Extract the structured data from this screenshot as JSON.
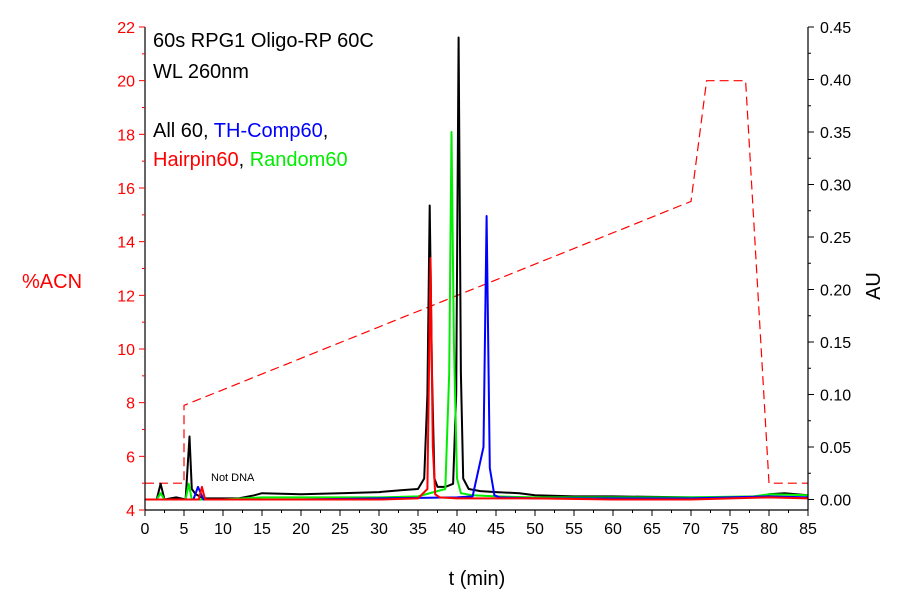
{
  "chart_data": {
    "type": "line",
    "title": "",
    "xlabel": "t (min)",
    "ylabel_left": "%ACN",
    "ylabel_right": "AU",
    "xlim": [
      0,
      85
    ],
    "ylim_left": [
      4,
      22
    ],
    "ylim_right": [
      -0.01,
      0.45
    ],
    "x_ticks": [
      "0",
      "5",
      "10",
      "15",
      "20",
      "25",
      "30",
      "35",
      "40",
      "45",
      "50",
      "55",
      "60",
      "65",
      "70",
      "75",
      "80",
      "85"
    ],
    "y_left_ticks": [
      "4",
      "6",
      "8",
      "10",
      "12",
      "14",
      "16",
      "18",
      "20",
      "22"
    ],
    "y_right_ticks": [
      "0.00",
      "0.05",
      "0.10",
      "0.15",
      "0.20",
      "0.25",
      "0.30",
      "0.35",
      "0.40",
      "0.45"
    ],
    "grid": false,
    "annotations": {
      "line1": "60s RPG1 Oligo-RP 60C",
      "line2": "WL 260nm",
      "legend_parts": [
        {
          "text": "All 60",
          "color": "#000000"
        },
        {
          "text": ", ",
          "color": "#000000"
        },
        {
          "text": "TH-Comp60",
          "color": "#0000ff"
        },
        {
          "text": ",",
          "color": "#000000"
        },
        {
          "text": "Hairpin60",
          "color": "#ff0000"
        },
        {
          "text": ", ",
          "color": "#000000"
        },
        {
          "text": "Random60",
          "color": "#00ee00"
        }
      ],
      "not_dna": "Not DNA"
    },
    "gradient": {
      "name": "%ACN",
      "axis": "left",
      "color": "#ff0000",
      "style": "dashed",
      "x": [
        0,
        5,
        5,
        70,
        72,
        77,
        80,
        85
      ],
      "y": [
        5,
        5,
        7.9,
        15.5,
        20,
        20,
        5,
        5
      ]
    },
    "series": [
      {
        "name": "All 60",
        "axis": "right",
        "color": "#000000",
        "x": [
          0,
          1.5,
          2,
          2.5,
          4,
          5.2,
          5.7,
          6,
          6.5,
          7.5,
          9,
          12,
          14,
          15,
          20,
          25,
          30,
          33,
          35,
          35.8,
          36.2,
          36.5,
          36.8,
          37.1,
          37.5,
          38.5,
          39.5,
          39.9,
          40.2,
          40.5,
          40.8,
          41.5,
          43,
          45,
          48,
          50,
          55,
          60,
          70,
          75,
          78,
          80,
          82,
          85
        ],
        "y": [
          0.0,
          0.0,
          0.015,
          0.0,
          0.002,
          0.0,
          0.06,
          0.01,
          0.005,
          0.001,
          0.001,
          0.001,
          0.004,
          0.006,
          0.005,
          0.006,
          0.007,
          0.009,
          0.01,
          0.02,
          0.1,
          0.28,
          0.12,
          0.02,
          0.012,
          0.012,
          0.015,
          0.1,
          0.44,
          0.12,
          0.02,
          0.01,
          0.008,
          0.007,
          0.006,
          0.004,
          0.003,
          0.003,
          0.002,
          0.002,
          0.002,
          0.005,
          0.006,
          0.004
        ]
      },
      {
        "name": "TH-Comp60",
        "axis": "right",
        "color": "#0000ff",
        "x": [
          0,
          5,
          6.2,
          6.8,
          7.5,
          10,
          20,
          30,
          40,
          42,
          43.4,
          43.8,
          44.2,
          44.8,
          45.5,
          50,
          60,
          70,
          80,
          85
        ],
        "y": [
          0.0,
          0.0,
          0.0,
          0.012,
          0.0,
          0.0,
          0.0,
          0.001,
          0.002,
          0.003,
          0.05,
          0.27,
          0.03,
          0.004,
          0.002,
          0.001,
          0.001,
          0.001,
          0.003,
          0.002
        ]
      },
      {
        "name": "Hairpin60",
        "axis": "right",
        "color": "#ff0000",
        "x": [
          0,
          6.9,
          7.3,
          7.7,
          10,
          20,
          30,
          35,
          36.2,
          36.6,
          36.9,
          37.2,
          37.8,
          40,
          50,
          60,
          70,
          80,
          85
        ],
        "y": [
          0.0,
          0.0,
          0.012,
          0.0,
          0.0,
          0.0,
          0.0,
          0.001,
          0.01,
          0.23,
          0.05,
          0.005,
          0.002,
          0.001,
          0.001,
          0.0,
          0.0,
          0.002,
          0.001
        ]
      },
      {
        "name": "Random60",
        "axis": "right",
        "color": "#00ee00",
        "x": [
          0,
          1.5,
          2,
          2.5,
          5.2,
          5.6,
          6,
          7,
          10,
          15,
          20,
          30,
          35,
          38.5,
          39.0,
          39.3,
          39.6,
          40.0,
          40.5,
          42,
          45,
          50,
          60,
          70,
          78,
          80,
          85
        ],
        "y": [
          0.0,
          0.0,
          0.006,
          0.0,
          0.0,
          0.015,
          0.0,
          0.0,
          0.0,
          0.002,
          0.002,
          0.002,
          0.003,
          0.01,
          0.12,
          0.35,
          0.15,
          0.02,
          0.006,
          0.004,
          0.003,
          0.002,
          0.002,
          0.002,
          0.003,
          0.005,
          0.004
        ]
      }
    ]
  }
}
